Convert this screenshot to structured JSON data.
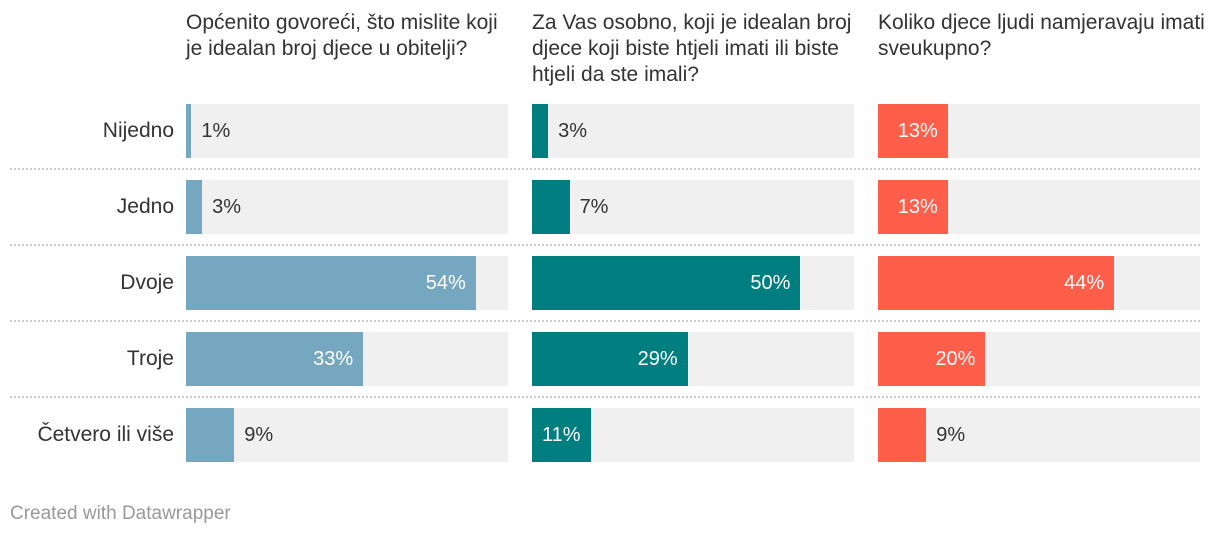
{
  "chart_data": {
    "type": "bar",
    "categories": [
      "Nijedno",
      "Jedno",
      "Dvoje",
      "Troje",
      "Četvero ili više"
    ],
    "panels": [
      {
        "title": "Općenito govoreći, što mislite koji je idealan broj djece u obitelji?",
        "color": "#76a7c1",
        "values": [
          1,
          3,
          54,
          33,
          9
        ],
        "labels": [
          "1%",
          "3%",
          "54%",
          "33%",
          "9%"
        ]
      },
      {
        "title": "Za Vas osobno, koji je idealan broj djece koji biste htjeli imati ili biste htjeli da ste imali?",
        "color": "#017e7f",
        "values": [
          3,
          7,
          50,
          29,
          11
        ],
        "labels": [
          "3%",
          "7%",
          "50%",
          "29%",
          "11%"
        ]
      },
      {
        "title": "Koliko djece ljudi namjeravaju imati sveukupno?",
        "color": "#ff5f4a",
        "values": [
          13,
          13,
          44,
          20,
          9
        ],
        "labels": [
          "13%",
          "13%",
          "44%",
          "20%",
          "9%"
        ]
      }
    ],
    "xlim": [
      0,
      60
    ],
    "background_color": "#f0f0f0",
    "separator": "dotted",
    "legend": "none"
  },
  "footer": "Created with Datawrapper"
}
